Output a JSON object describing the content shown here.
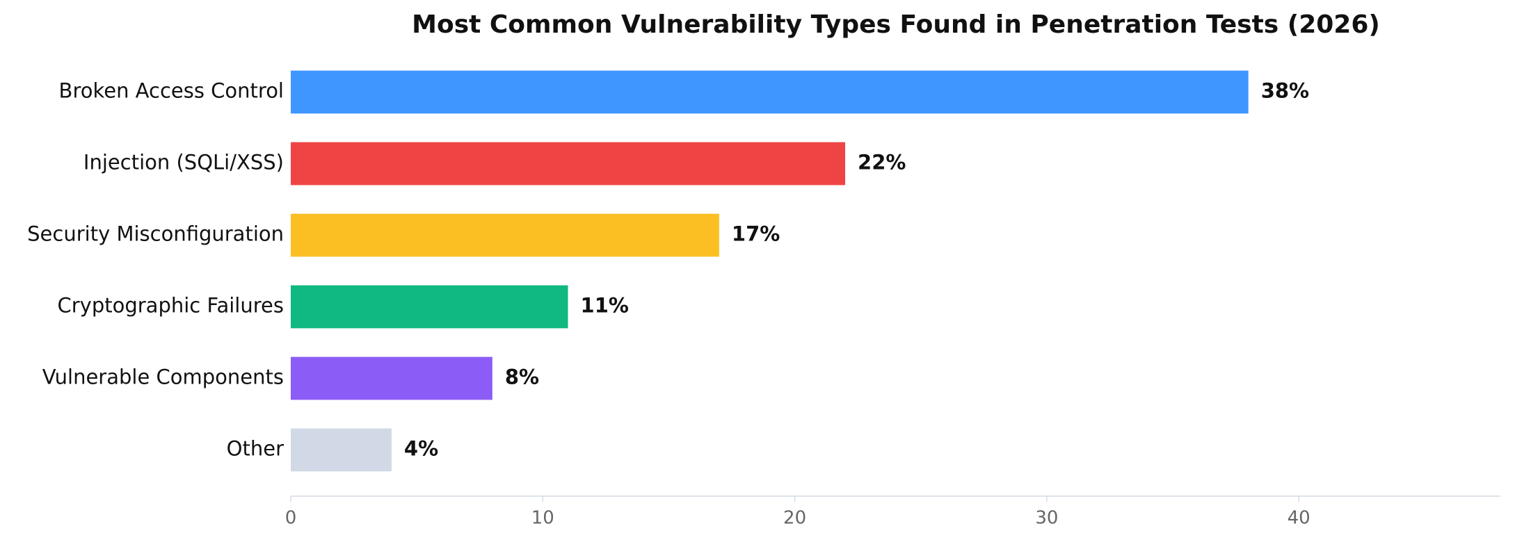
{
  "chart_data": {
    "type": "hbar",
    "title": "Most Common Vulnerability Types Found in Penetration Tests (2026)",
    "categories": [
      "Broken Access Control",
      "Injection (SQLi/XSS)",
      "Security Misconfiguration",
      "Cryptographic Failures",
      "Vulnerable Components",
      "Other"
    ],
    "values": [
      38,
      22,
      17,
      11,
      8,
      4
    ],
    "value_labels": [
      "38%",
      "22%",
      "17%",
      "11%",
      "8%",
      "4%"
    ],
    "colors": [
      "#4096ff",
      "#ef4444",
      "#fbbf24",
      "#10b981",
      "#8b5cf6",
      "#d1d9e6"
    ],
    "xlim": [
      0,
      48
    ],
    "xticks": [
      0,
      10,
      20,
      30,
      40
    ],
    "grid": false
  }
}
